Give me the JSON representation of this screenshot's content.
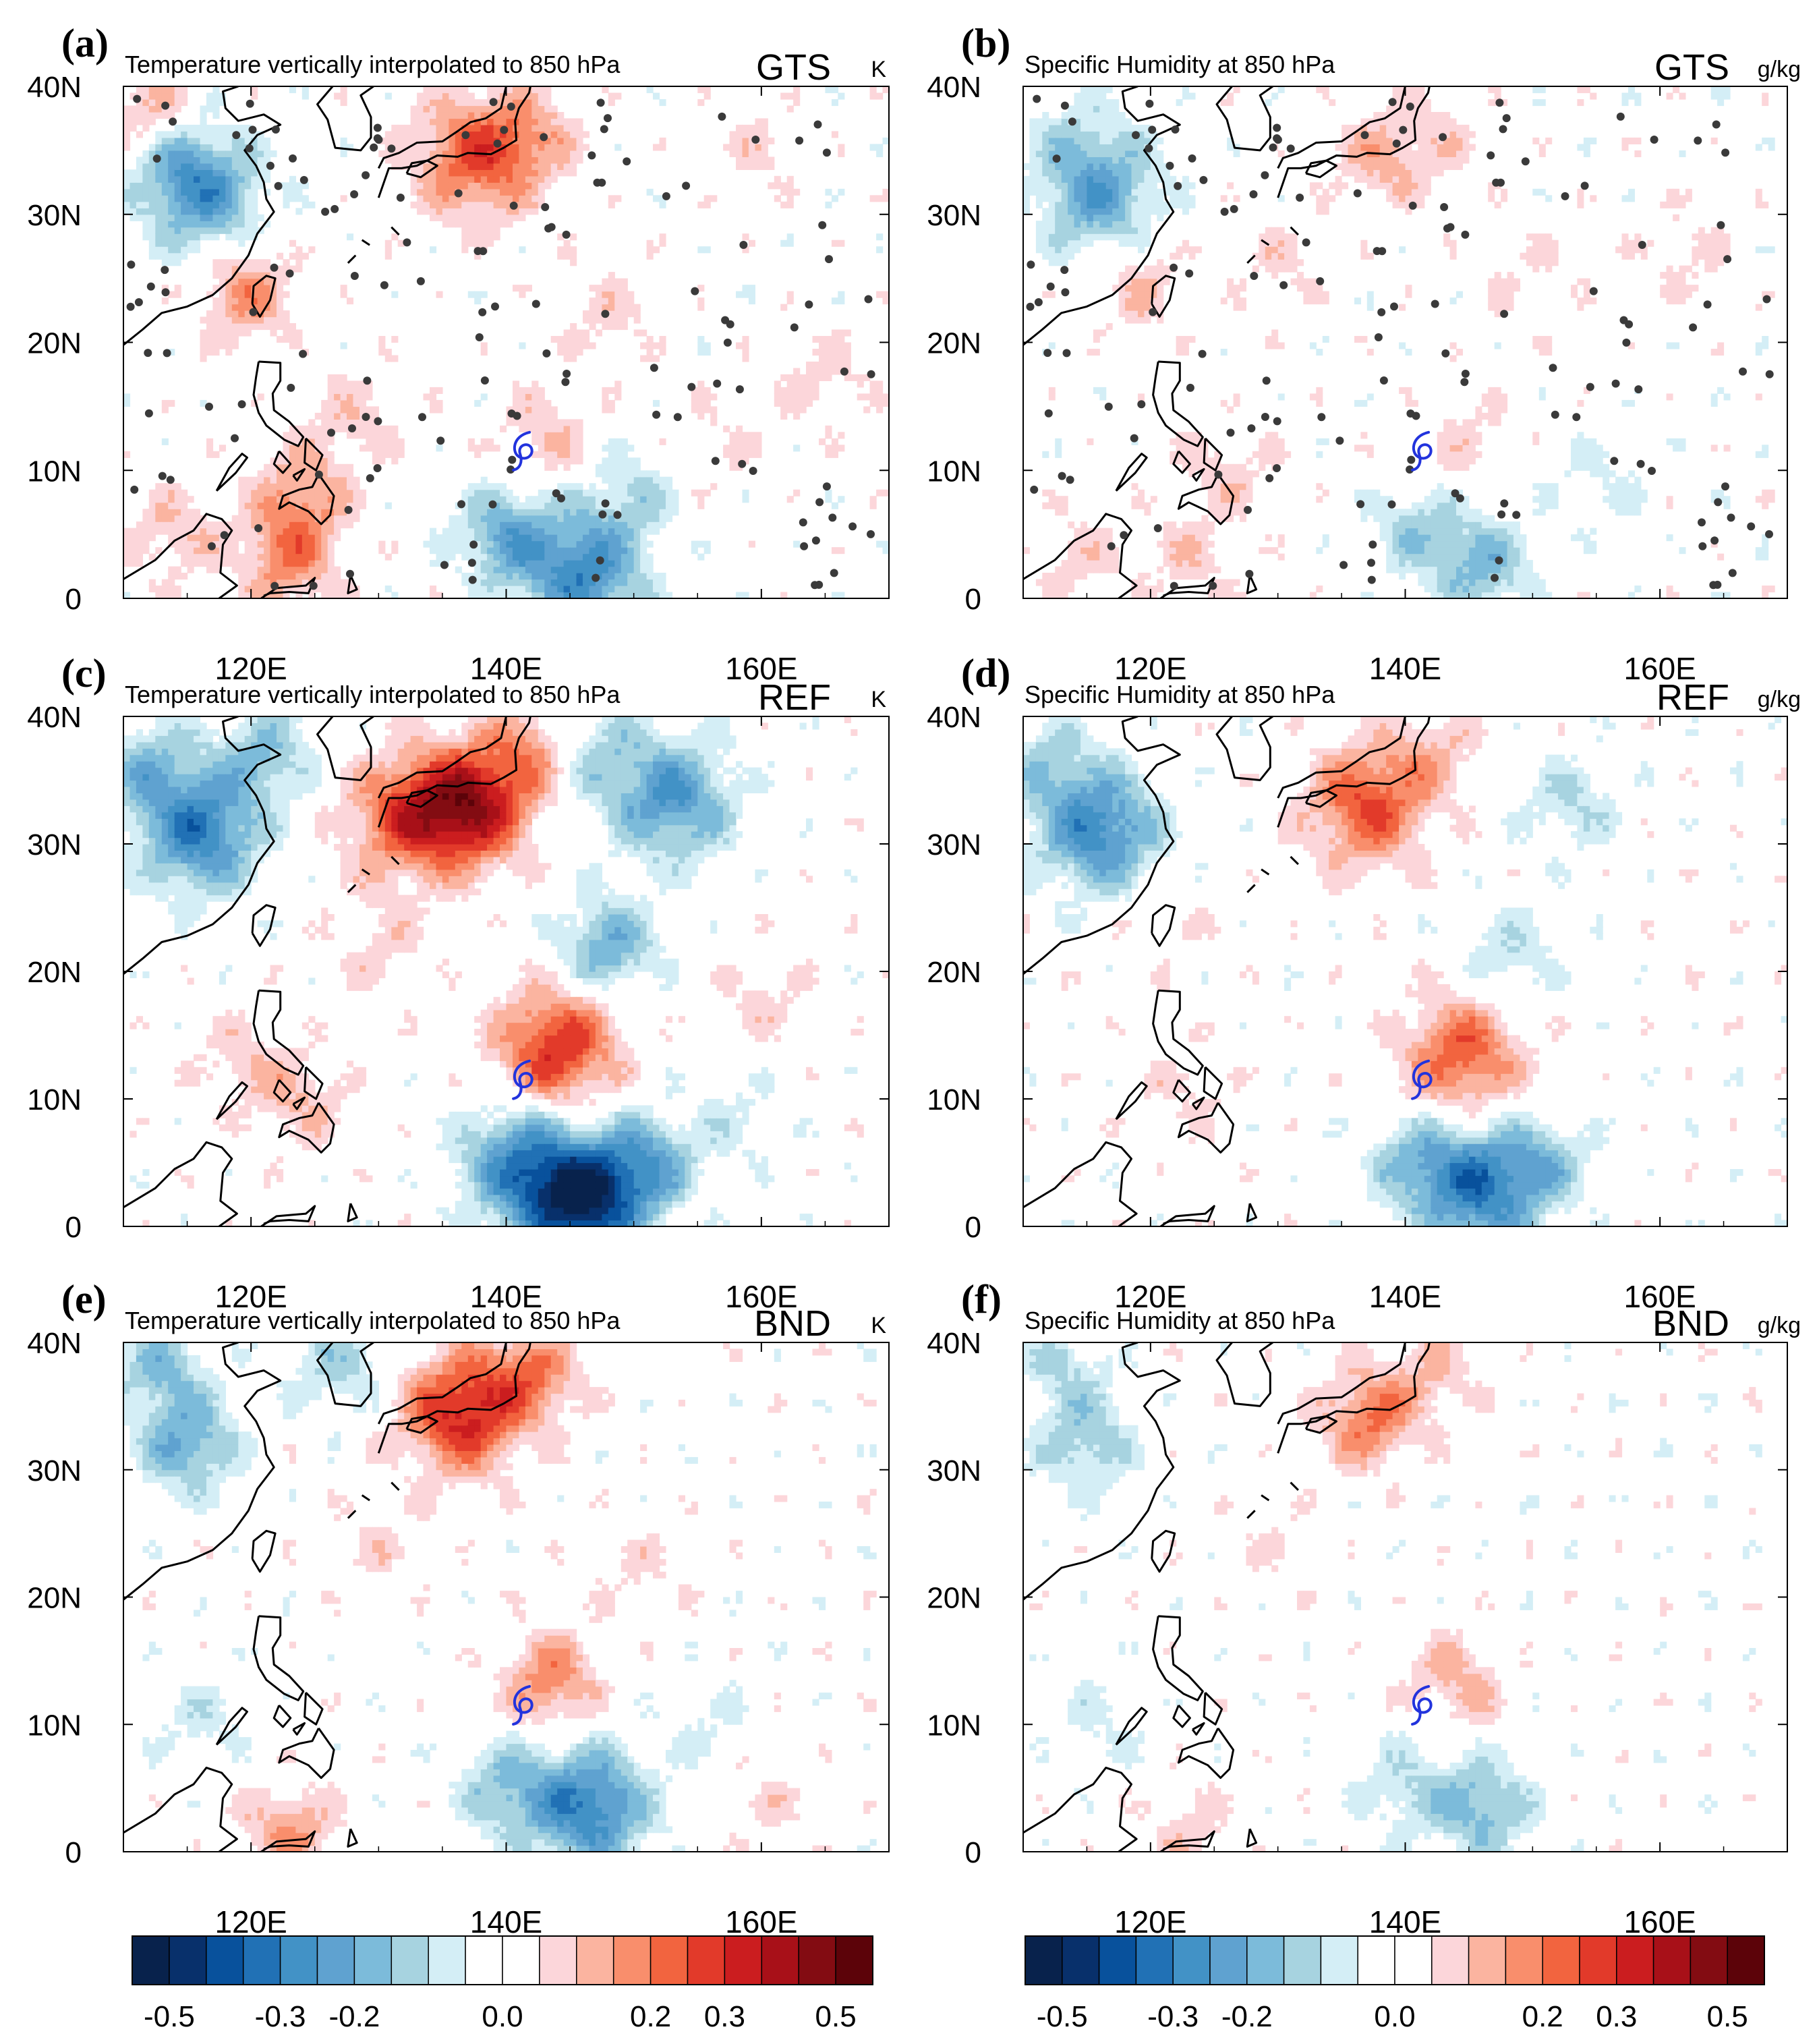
{
  "figure_title": "",
  "chart_data": [
    {
      "type": "heatmap",
      "panel": "(a)",
      "title": "Temperature vertically interpolated to 850 hPa",
      "experiment": "GTS",
      "units": "K",
      "x_ticks": [
        {
          "v": 120,
          "label": "120E"
        },
        {
          "v": 140,
          "label": "140E"
        },
        {
          "v": 160,
          "label": "160E"
        }
      ],
      "y_ticks": [
        {
          "v": 0,
          "label": "0"
        },
        {
          "v": 10,
          "label": "10N"
        },
        {
          "v": 20,
          "label": "20N"
        },
        {
          "v": 30,
          "label": "30N"
        },
        {
          "v": 40,
          "label": "40N"
        }
      ],
      "xlim": [
        110,
        170
      ],
      "ylim": [
        0,
        40
      ],
      "typhoon_center": [
        141.3,
        11.5
      ],
      "observation_stations": true,
      "anomalies": [
        {
          "lon": 116.5,
          "lat": 31.5,
          "value": -0.22
        },
        {
          "lon": 119.5,
          "lat": 24,
          "value": 0.17
        },
        {
          "lon": 112,
          "lat": 38,
          "value": 0.12
        },
        {
          "lon": 114,
          "lat": 34,
          "value": -0.12
        },
        {
          "lon": 137.5,
          "lat": 34.5,
          "value": 0.24
        },
        {
          "lon": 142,
          "lat": 36,
          "value": 0.12
        },
        {
          "lon": 160,
          "lat": 35,
          "value": 0.06
        },
        {
          "lon": 148,
          "lat": 22,
          "value": 0.07
        },
        {
          "lon": 128,
          "lat": 14,
          "value": 0.08
        },
        {
          "lon": 124,
          "lat": 8,
          "value": 0.15
        },
        {
          "lon": 123,
          "lat": 3,
          "value": 0.18
        },
        {
          "lon": 114,
          "lat": 5,
          "value": 0.1
        },
        {
          "lon": 146,
          "lat": 2,
          "value": -0.28
        },
        {
          "lon": 140,
          "lat": 5,
          "value": -0.2
        },
        {
          "lon": 150,
          "lat": 8,
          "value": -0.1
        },
        {
          "lon": 156,
          "lat": 12,
          "value": 0.05
        },
        {
          "lon": 143,
          "lat": 12.5,
          "value": 0.1
        },
        {
          "lon": 165,
          "lat": 17,
          "value": 0.07
        }
      ]
    },
    {
      "type": "heatmap",
      "panel": "(b)",
      "title": "Specific Humidity at 850 hPa",
      "experiment": "GTS",
      "units": "g/kg",
      "x_ticks": [
        {
          "v": 120,
          "label": "120E"
        },
        {
          "v": 140,
          "label": "140E"
        },
        {
          "v": 160,
          "label": "160E"
        }
      ],
      "y_ticks": [
        {
          "v": 0,
          "label": "0"
        },
        {
          "v": 10,
          "label": "10N"
        },
        {
          "v": 20,
          "label": "20N"
        },
        {
          "v": 30,
          "label": "30N"
        },
        {
          "v": 40,
          "label": "40N"
        }
      ],
      "xlim": [
        110,
        170
      ],
      "ylim": [
        0,
        40
      ],
      "typhoon_center": [
        141.3,
        11.5
      ],
      "observation_stations": true,
      "anomalies": [
        {
          "lon": 116,
          "lat": 31.5,
          "value": -0.22
        },
        {
          "lon": 119,
          "lat": 24.5,
          "value": 0.1
        },
        {
          "lon": 114,
          "lat": 36,
          "value": -0.07
        },
        {
          "lon": 138,
          "lat": 34.5,
          "value": 0.12
        },
        {
          "lon": 143,
          "lat": 36,
          "value": 0.06
        },
        {
          "lon": 162,
          "lat": 27,
          "value": 0.06
        },
        {
          "lon": 130,
          "lat": 26,
          "value": 0.06
        },
        {
          "lon": 150,
          "lat": 25,
          "value": 0.05
        },
        {
          "lon": 126,
          "lat": 10,
          "value": 0.08
        },
        {
          "lon": 146,
          "lat": 2.5,
          "value": -0.17
        },
        {
          "lon": 141,
          "lat": 5.5,
          "value": -0.12
        },
        {
          "lon": 145,
          "lat": 12,
          "value": 0.07
        },
        {
          "lon": 114,
          "lat": 3,
          "value": 0.07
        },
        {
          "lon": 123,
          "lat": 3,
          "value": 0.08
        },
        {
          "lon": 155,
          "lat": 9,
          "value": -0.06
        }
      ]
    },
    {
      "type": "heatmap",
      "panel": "(c)",
      "title": "Temperature vertically interpolated to 850 hPa",
      "experiment": "REF",
      "units": "K",
      "x_ticks": [
        {
          "v": 120,
          "label": "120E"
        },
        {
          "v": 140,
          "label": "140E"
        },
        {
          "v": 160,
          "label": "160E"
        }
      ],
      "y_ticks": [
        {
          "v": 0,
          "label": "0"
        },
        {
          "v": 10,
          "label": "10N"
        },
        {
          "v": 20,
          "label": "20N"
        },
        {
          "v": 30,
          "label": "30N"
        },
        {
          "v": 40,
          "label": "40N"
        }
      ],
      "xlim": [
        110,
        170
      ],
      "ylim": [
        0,
        40
      ],
      "typhoon_center": [
        141.3,
        11.5
      ],
      "observation_stations": false,
      "anomalies": [
        {
          "lon": 116,
          "lat": 31,
          "value": -0.3
        },
        {
          "lon": 112,
          "lat": 36,
          "value": -0.15
        },
        {
          "lon": 121,
          "lat": 37,
          "value": -0.15
        },
        {
          "lon": 137,
          "lat": 33,
          "value": 0.38
        },
        {
          "lon": 132,
          "lat": 32,
          "value": 0.22
        },
        {
          "lon": 142,
          "lat": 37.5,
          "value": 0.15
        },
        {
          "lon": 153,
          "lat": 33.5,
          "value": -0.25
        },
        {
          "lon": 147,
          "lat": 37,
          "value": -0.12
        },
        {
          "lon": 148,
          "lat": 22,
          "value": -0.2
        },
        {
          "lon": 144,
          "lat": 14,
          "value": 0.3
        },
        {
          "lon": 146,
          "lat": 2,
          "value": -0.45
        },
        {
          "lon": 141,
          "lat": 5,
          "value": -0.25
        },
        {
          "lon": 151,
          "lat": 5,
          "value": -0.2
        },
        {
          "lon": 124,
          "lat": 10,
          "value": 0.1
        },
        {
          "lon": 119,
          "lat": 13,
          "value": 0.08
        },
        {
          "lon": 160,
          "lat": 18,
          "value": 0.07
        },
        {
          "lon": 158,
          "lat": 8,
          "value": -0.06
        },
        {
          "lon": 130,
          "lat": 22,
          "value": 0.07
        }
      ]
    },
    {
      "type": "heatmap",
      "panel": "(d)",
      "title": "Specific Humidity at 850 hPa",
      "experiment": "REF",
      "units": "g/kg",
      "x_ticks": [
        {
          "v": 120,
          "label": "120E"
        },
        {
          "v": 140,
          "label": "140E"
        },
        {
          "v": 160,
          "label": "160E"
        }
      ],
      "y_ticks": [
        {
          "v": 0,
          "label": "0"
        },
        {
          "v": 10,
          "label": "10N"
        },
        {
          "v": 20,
          "label": "20N"
        },
        {
          "v": 30,
          "label": "30N"
        },
        {
          "v": 40,
          "label": "40N"
        }
      ],
      "xlim": [
        110,
        170
      ],
      "ylim": [
        0,
        40
      ],
      "typhoon_center": [
        141.3,
        11.5
      ],
      "observation_stations": false,
      "anomalies": [
        {
          "lon": 116,
          "lat": 31,
          "value": -0.28
        },
        {
          "lon": 112,
          "lat": 36,
          "value": -0.12
        },
        {
          "lon": 137,
          "lat": 33,
          "value": 0.25
        },
        {
          "lon": 142,
          "lat": 37,
          "value": 0.1
        },
        {
          "lon": 153,
          "lat": 33,
          "value": -0.1
        },
        {
          "lon": 148,
          "lat": 21,
          "value": -0.1
        },
        {
          "lon": 144.5,
          "lat": 13.5,
          "value": 0.24
        },
        {
          "lon": 146,
          "lat": 3,
          "value": -0.3
        },
        {
          "lon": 141,
          "lat": 5,
          "value": -0.15
        },
        {
          "lon": 151,
          "lat": 5,
          "value": -0.12
        },
        {
          "lon": 123,
          "lat": 11,
          "value": 0.06
        },
        {
          "lon": 121,
          "lat": 24,
          "value": 0.05
        }
      ]
    },
    {
      "type": "heatmap",
      "panel": "(e)",
      "title": "Temperature vertically interpolated to 850 hPa",
      "experiment": "BND",
      "units": "K",
      "x_ticks": [
        {
          "v": 120,
          "label": "120E"
        },
        {
          "v": 140,
          "label": "140E"
        },
        {
          "v": 160,
          "label": "160E"
        }
      ],
      "y_ticks": [
        {
          "v": 0,
          "label": "0"
        },
        {
          "v": 10,
          "label": "10N"
        },
        {
          "v": 20,
          "label": "20N"
        },
        {
          "v": 30,
          "label": "30N"
        },
        {
          "v": 40,
          "label": "40N"
        }
      ],
      "xlim": [
        110,
        170
      ],
      "ylim": [
        0,
        40
      ],
      "typhoon_center": [
        141.3,
        11.5
      ],
      "observation_stations": false,
      "anomalies": [
        {
          "lon": 115,
          "lat": 32,
          "value": -0.2
        },
        {
          "lon": 113,
          "lat": 38,
          "value": -0.15
        },
        {
          "lon": 127,
          "lat": 38,
          "value": -0.12
        },
        {
          "lon": 136.5,
          "lat": 34.5,
          "value": 0.32
        },
        {
          "lon": 142,
          "lat": 37.5,
          "value": 0.18
        },
        {
          "lon": 146.5,
          "lat": 3.5,
          "value": -0.3
        },
        {
          "lon": 140,
          "lat": 5,
          "value": -0.15
        },
        {
          "lon": 143.5,
          "lat": 13.5,
          "value": 0.18
        },
        {
          "lon": 123,
          "lat": 1.5,
          "value": 0.15
        },
        {
          "lon": 116,
          "lat": 10,
          "value": -0.07
        },
        {
          "lon": 130,
          "lat": 24,
          "value": 0.06
        },
        {
          "lon": 150,
          "lat": 22,
          "value": 0.05
        },
        {
          "lon": 160,
          "lat": 4,
          "value": 0.06
        },
        {
          "lon": 156,
          "lat": 10,
          "value": -0.05
        }
      ]
    },
    {
      "type": "heatmap",
      "panel": "(f)",
      "title": "Specific Humidity at 850 hPa",
      "experiment": "BND",
      "units": "g/kg",
      "x_ticks": [
        {
          "v": 120,
          "label": "120E"
        },
        {
          "v": 140,
          "label": "140E"
        },
        {
          "v": 160,
          "label": "160E"
        }
      ],
      "y_ticks": [
        {
          "v": 0,
          "label": "0"
        },
        {
          "v": 10,
          "label": "10N"
        },
        {
          "v": 20,
          "label": "20N"
        },
        {
          "v": 30,
          "label": "30N"
        },
        {
          "v": 40,
          "label": "40N"
        }
      ],
      "xlim": [
        110,
        170
      ],
      "ylim": [
        0,
        40
      ],
      "typhoon_center": [
        141.3,
        11.5
      ],
      "observation_stations": false,
      "anomalies": [
        {
          "lon": 115,
          "lat": 32,
          "value": -0.14
        },
        {
          "lon": 113,
          "lat": 38,
          "value": -0.1
        },
        {
          "lon": 137,
          "lat": 34,
          "value": 0.2
        },
        {
          "lon": 142,
          "lat": 37.5,
          "value": 0.1
        },
        {
          "lon": 146,
          "lat": 3.5,
          "value": -0.18
        },
        {
          "lon": 140,
          "lat": 5,
          "value": -0.1
        },
        {
          "lon": 144,
          "lat": 13.5,
          "value": 0.12
        },
        {
          "lon": 123,
          "lat": 1.5,
          "value": 0.08
        },
        {
          "lon": 116,
          "lat": 10,
          "value": -0.06
        },
        {
          "lon": 130,
          "lat": 24,
          "value": 0.04
        }
      ]
    }
  ],
  "colorbars": [
    {
      "name": "temperature-colorbar",
      "labels": [
        "-0.5",
        "-0.3",
        "-0.2",
        "0.0",
        "0.2",
        "0.3",
        "0.5"
      ]
    },
    {
      "name": "humidity-colorbar",
      "labels": [
        "-0.5",
        "-0.3",
        "-0.2",
        "0.0",
        "0.2",
        "0.3",
        "0.5"
      ]
    }
  ],
  "colorscale": [
    "#08224c",
    "#08306b",
    "#08519c",
    "#2171b5",
    "#4292c6",
    "#5fa2d0",
    "#7cbbda",
    "#a7d3e0",
    "#d4eef6",
    "#ffffff",
    "#ffffff",
    "#fcd6da",
    "#fbb4a0",
    "#f98e6c",
    "#f2643f",
    "#e23a2a",
    "#cb1d1f",
    "#a81018",
    "#830c12",
    "#5c0309"
  ],
  "colors": {
    "station_dot": "#3a3a3a",
    "typhoon_symbol": "#2233dd",
    "coastline": "#000000"
  }
}
